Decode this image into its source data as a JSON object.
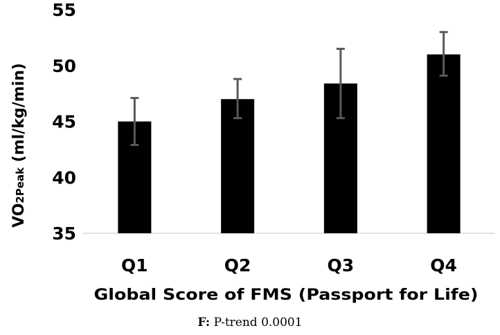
{
  "chart_data": {
    "type": "bar",
    "categories": [
      "Q1",
      "Q2",
      "Q3",
      "Q4"
    ],
    "values": [
      45.0,
      47.0,
      48.4,
      51.0
    ],
    "error_low": [
      42.9,
      45.3,
      45.3,
      49.1
    ],
    "error_high": [
      47.1,
      48.8,
      51.5,
      53.0
    ],
    "ylabel_main": "VO",
    "ylabel_sub": "2Peak",
    "ylabel_rest": " (ml/kg/min)",
    "xlabel": "Global Score of FMS (Passport for Life)",
    "ylim": [
      35,
      55
    ],
    "yticks": [
      "35",
      "40",
      "45",
      "50",
      "55"
    ],
    "grid": false,
    "colors": {
      "bar": "#000000",
      "error": "#595959",
      "axis": "#d9d9d9"
    }
  },
  "caption": {
    "label": "F:",
    "text": " P-trend 0.0001"
  }
}
